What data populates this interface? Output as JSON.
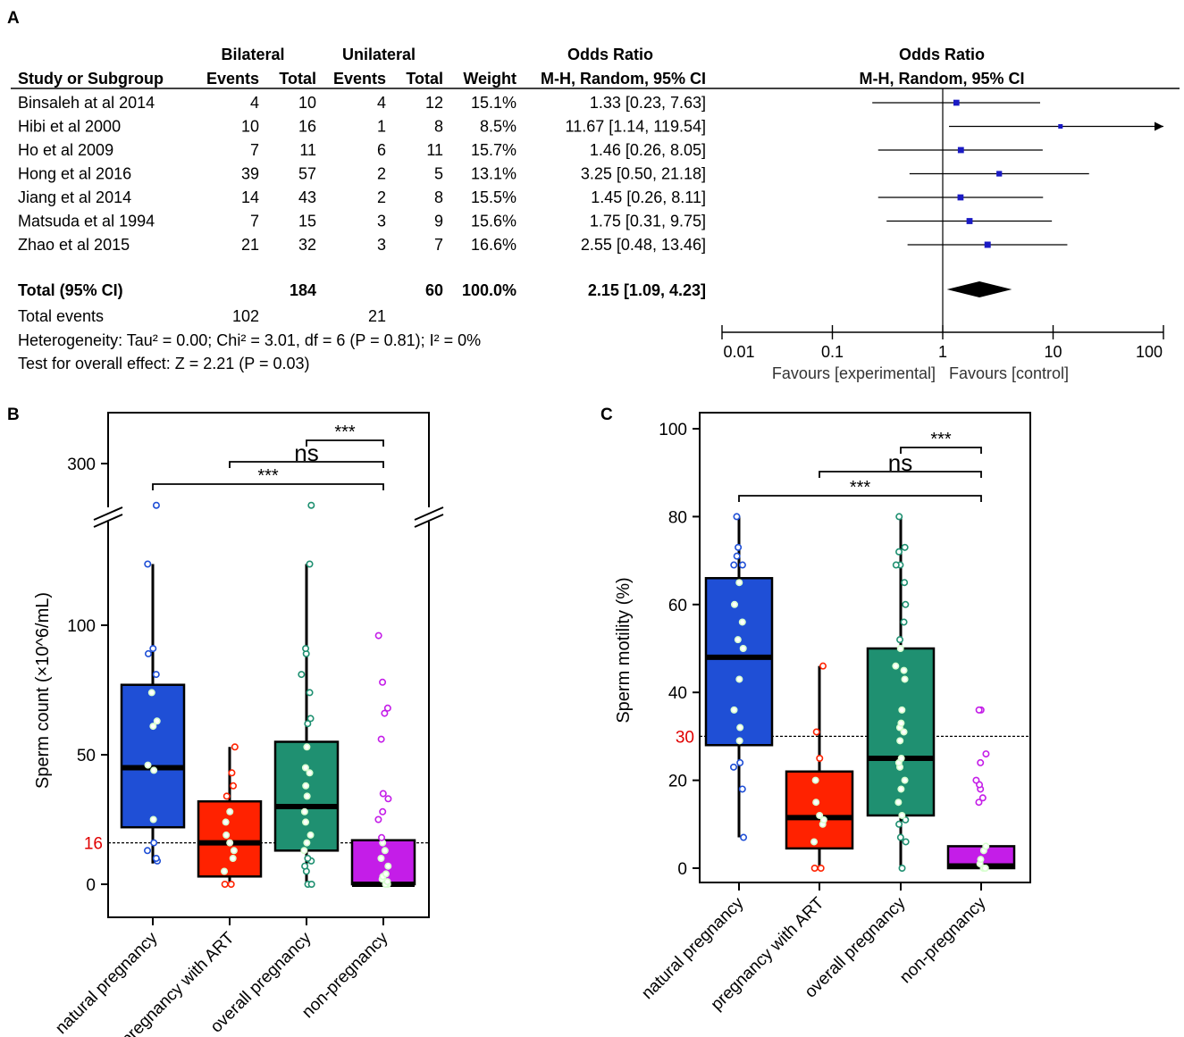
{
  "panel_labels": {
    "a": "A",
    "b": "B",
    "c": "C"
  },
  "chart_data": [
    {
      "type": "table",
      "panel": "A",
      "kind": "forest_plot",
      "group_headers": {
        "bilateral": "Bilateral",
        "unilateral": "Unilateral",
        "odds_ratio_col": "Odds Ratio",
        "odds_ratio_plot": "Odds Ratio"
      },
      "columns": [
        "Study or Subgroup",
        "Events",
        "Total",
        "Events",
        "Total",
        "Weight",
        "M-H, Random, 95% CI"
      ],
      "plot_subheader": "M-H, Random, 95% CI",
      "studies": [
        {
          "study": "Binsaleh at al 2014",
          "bil_events": "4",
          "bil_total": "10",
          "uni_events": "4",
          "uni_total": "12",
          "weight": "15.1%",
          "ci_text": "1.33 [0.23, 7.63]",
          "or": 1.33,
          "lo": 0.23,
          "hi": 7.63
        },
        {
          "study": "Hibi et al 2000",
          "bil_events": "10",
          "bil_total": "16",
          "uni_events": "1",
          "uni_total": "8",
          "weight": "8.5%",
          "ci_text": "11.67 [1.14, 119.54]",
          "or": 11.67,
          "lo": 1.14,
          "hi": 119.54
        },
        {
          "study": "Ho et al 2009",
          "bil_events": "7",
          "bil_total": "11",
          "uni_events": "6",
          "uni_total": "11",
          "weight": "15.7%",
          "ci_text": "1.46 [0.26, 8.05]",
          "or": 1.46,
          "lo": 0.26,
          "hi": 8.05
        },
        {
          "study": "Hong et al 2016",
          "bil_events": "39",
          "bil_total": "57",
          "uni_events": "2",
          "uni_total": "5",
          "weight": "13.1%",
          "ci_text": "3.25 [0.50, 21.18]",
          "or": 3.25,
          "lo": 0.5,
          "hi": 21.18
        },
        {
          "study": "Jiang et al 2014",
          "bil_events": "14",
          "bil_total": "43",
          "uni_events": "2",
          "uni_total": "8",
          "weight": "15.5%",
          "ci_text": "1.45 [0.26, 8.11]",
          "or": 1.45,
          "lo": 0.26,
          "hi": 8.11
        },
        {
          "study": "Matsuda et al 1994",
          "bil_events": "7",
          "bil_total": "15",
          "uni_events": "3",
          "uni_total": "9",
          "weight": "15.6%",
          "ci_text": "1.75 [0.31, 9.75]",
          "or": 1.75,
          "lo": 0.31,
          "hi": 9.75
        },
        {
          "study": "Zhao et al 2015",
          "bil_events": "21",
          "bil_total": "32",
          "uni_events": "3",
          "uni_total": "7",
          "weight": "16.6%",
          "ci_text": "2.55 [0.48, 13.46]",
          "or": 2.55,
          "lo": 0.48,
          "hi": 13.46
        }
      ],
      "total": {
        "label": "Total (95% CI)",
        "bil_total": "184",
        "uni_total": "60",
        "weight": "100.0%",
        "ci_text": "2.15 [1.09, 4.23]",
        "or": 2.15,
        "lo": 1.09,
        "hi": 4.23
      },
      "total_events": {
        "label": "Total events",
        "bil": "102",
        "uni": "21"
      },
      "heterogeneity": "Heterogeneity: Tau² = 0.00; Chi² = 3.01, df = 6 (P = 0.81); I² = 0%",
      "overall_effect": "Test for overall effect: Z = 2.21 (P = 0.03)",
      "axis": {
        "scale": "log",
        "ticks": [
          0.01,
          0.1,
          1,
          10,
          100
        ],
        "tick_labels": [
          "0.01",
          "0.1",
          "1",
          "10",
          "100"
        ]
      },
      "favours_left": "Favours [experimental]",
      "favours_right": "Favours [control]"
    },
    {
      "type": "scatter",
      "panel": "B",
      "kind": "boxplot_with_points",
      "ylabel": "Sperm count (×10^6/mL)",
      "yticks": [
        "0",
        "50",
        "100",
        "300"
      ],
      "threshold": {
        "value": 16,
        "label": "16"
      },
      "categories": [
        "natural pregnancy",
        "pregnancy with ART",
        "overall pregnancy",
        "non-pregnancy"
      ],
      "colors": [
        "#1f4fd6",
        "#ff2200",
        "#1f9071",
        "#c41de8"
      ],
      "boxes": [
        {
          "q1": 22,
          "median": 45,
          "q3": 77,
          "whisker_lo": 8,
          "whisker_hi": 125
        },
        {
          "q1": 3,
          "median": 16,
          "q3": 32,
          "whisker_lo": 0,
          "whisker_hi": 53
        },
        {
          "q1": 13,
          "median": 30,
          "q3": 55,
          "whisker_lo": 0,
          "whisker_hi": 125
        },
        {
          "q1": 0,
          "median": 0,
          "q3": 17,
          "whisker_lo": 0,
          "whisker_hi": 17
        }
      ],
      "points": [
        [
          9,
          10,
          13,
          16,
          25,
          44,
          46,
          61,
          63,
          74,
          81,
          89,
          91,
          125,
          149
        ],
        [
          0,
          0,
          5,
          10,
          13,
          16,
          19,
          24,
          28,
          34,
          38,
          43,
          53
        ],
        [
          0,
          0,
          5,
          7,
          9,
          10,
          13,
          16,
          19,
          24,
          28,
          34,
          38,
          43,
          45,
          53,
          62,
          64,
          74,
          81,
          89,
          91,
          125,
          149
        ],
        [
          0,
          0,
          1,
          2,
          3,
          4,
          7,
          10,
          13,
          16,
          18,
          25,
          28,
          33,
          35,
          56,
          66,
          68,
          78,
          96
        ]
      ],
      "significance": [
        {
          "from": 0,
          "to": 3,
          "label": "***"
        },
        {
          "from": 1,
          "to": 3,
          "label": "ns"
        },
        {
          "from": 2,
          "to": 3,
          "label": "***"
        }
      ]
    },
    {
      "type": "scatter",
      "panel": "C",
      "kind": "boxplot_with_points",
      "ylabel": "Sperm motility (%)",
      "yticks": [
        0,
        20,
        40,
        60,
        80,
        100
      ],
      "ylim": [
        0,
        100
      ],
      "threshold": {
        "value": 30,
        "label": "30"
      },
      "categories": [
        "natural pregnancy",
        "pregnancy with ART",
        "overall pregnancy",
        "non-pregnancy"
      ],
      "colors": [
        "#1f4fd6",
        "#ff2200",
        "#1f9071",
        "#c41de8"
      ],
      "boxes": [
        {
          "q1": 28,
          "median": 48,
          "q3": 66,
          "whisker_lo": 7,
          "whisker_hi": 80
        },
        {
          "q1": 4.5,
          "median": 11.5,
          "q3": 22,
          "whisker_lo": 0,
          "whisker_hi": 46
        },
        {
          "q1": 12,
          "median": 25,
          "q3": 50,
          "whisker_lo": 0,
          "whisker_hi": 80
        },
        {
          "q1": 0,
          "median": 0.5,
          "q3": 5,
          "whisker_lo": 0,
          "whisker_hi": 5
        }
      ],
      "points": [
        [
          7,
          18,
          23,
          24,
          29,
          32,
          36,
          43,
          50,
          52,
          56,
          60,
          65,
          69,
          69,
          71,
          73,
          80
        ],
        [
          0,
          0,
          6,
          10,
          11,
          12,
          15,
          20,
          25,
          31,
          46
        ],
        [
          0,
          6,
          7,
          10,
          11,
          12,
          15,
          18,
          20,
          23,
          24,
          25,
          29,
          31,
          32,
          33,
          36,
          43,
          45,
          46,
          50,
          52,
          56,
          60,
          65,
          69,
          69,
          72,
          73,
          80
        ],
        [
          0,
          0,
          0,
          1,
          2,
          4,
          5,
          15,
          16,
          18,
          19,
          20,
          24,
          26,
          36,
          36
        ]
      ],
      "significance": [
        {
          "from": 0,
          "to": 3,
          "label": "***"
        },
        {
          "from": 1,
          "to": 3,
          "label": "ns"
        },
        {
          "from": 2,
          "to": 3,
          "label": "***"
        }
      ]
    }
  ]
}
